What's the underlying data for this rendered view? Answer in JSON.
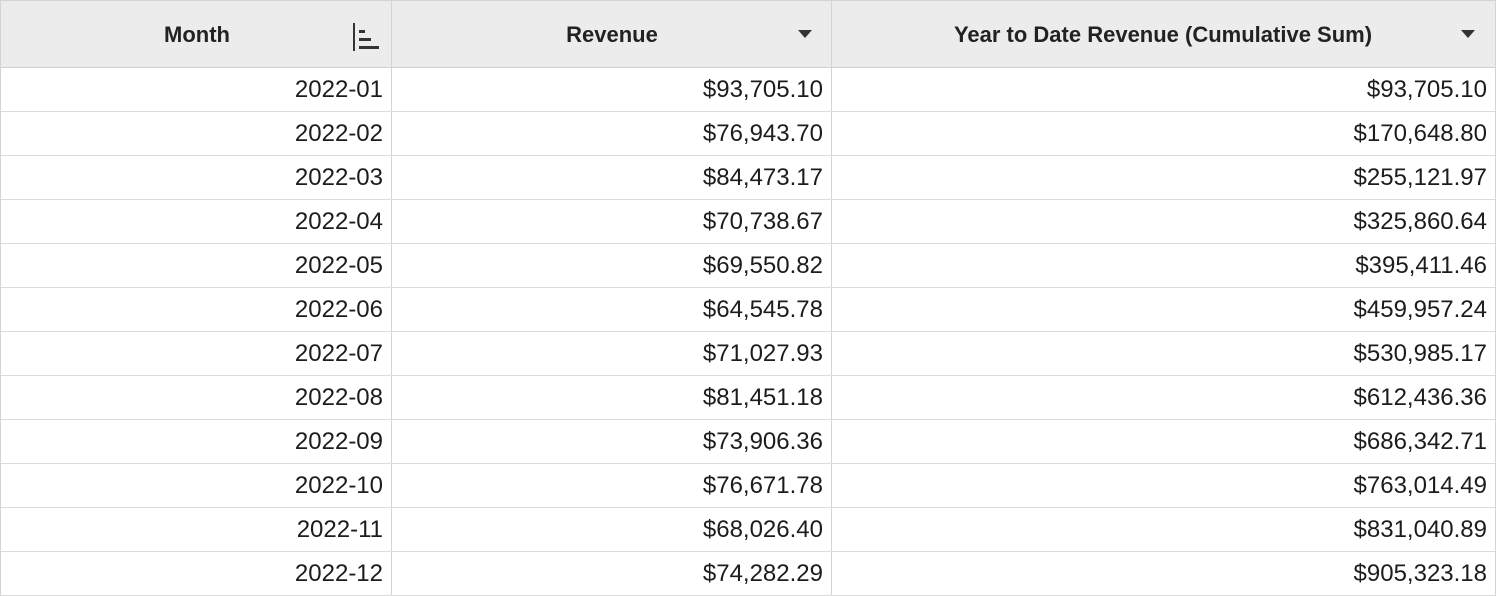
{
  "table": {
    "columns": [
      "Month",
      "Revenue",
      "Year to Date Revenue (Cumulative Sum)"
    ],
    "rows": [
      [
        "2022-01",
        "$93,705.10",
        "$93,705.10"
      ],
      [
        "2022-02",
        "$76,943.70",
        "$170,648.80"
      ],
      [
        "2022-03",
        "$84,473.17",
        "$255,121.97"
      ],
      [
        "2022-04",
        "$70,738.67",
        "$325,860.64"
      ],
      [
        "2022-05",
        "$69,550.82",
        "$395,411.46"
      ],
      [
        "2022-06",
        "$64,545.78",
        "$459,957.24"
      ],
      [
        "2022-07",
        "$71,027.93",
        "$530,985.17"
      ],
      [
        "2022-08",
        "$81,451.18",
        "$612,436.36"
      ],
      [
        "2022-09",
        "$73,906.36",
        "$686,342.71"
      ],
      [
        "2022-10",
        "$76,671.78",
        "$763,014.49"
      ],
      [
        "2022-11",
        "$68,026.40",
        "$831,040.89"
      ],
      [
        "2022-12",
        "$74,282.29",
        "$905,323.18"
      ]
    ]
  }
}
